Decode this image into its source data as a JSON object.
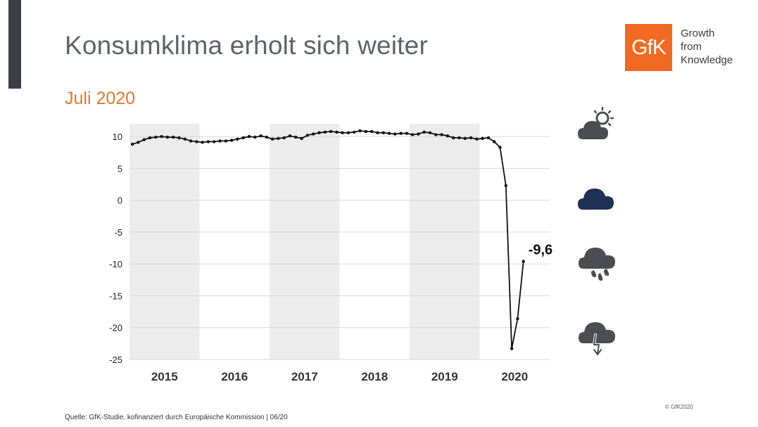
{
  "slide": {
    "title": "Konsumklima erholt sich weiter",
    "subtitle": "Juli 2020",
    "source": "Quelle: GfK-Studie, kofinanziert durch Europäische Kommission | 06/20",
    "copyright": "© GfK2020"
  },
  "logo": {
    "text": "GfK",
    "tagline": [
      "Growth",
      "from",
      "Knowledge"
    ],
    "color": "#f26a21"
  },
  "weather_icons": [
    "sun-behind-cloud-icon",
    "dark-cloud-icon",
    "rain-cloud-icon",
    "lightning-cloud-icon"
  ],
  "chart_data": {
    "type": "line",
    "title": "",
    "xlabel": "",
    "ylabel": "",
    "ylim": [
      -25,
      12
    ],
    "yticks": [
      10,
      5,
      0,
      -5,
      -10,
      -15,
      -20,
      -25
    ],
    "year_labels": [
      "2015",
      "2016",
      "2017",
      "2018",
      "2019",
      "2020"
    ],
    "shaded_years": [
      "2015",
      "2017",
      "2019"
    ],
    "grid": true,
    "line_color": "#111111",
    "annotation": {
      "label": "-9,6",
      "point": "last"
    },
    "series": [
      {
        "values": [
          8.8,
          9.1,
          9.5,
          9.8,
          9.9,
          10.0,
          9.9,
          9.9,
          9.8,
          9.6,
          9.3,
          9.2,
          9.1,
          9.2,
          9.2,
          9.3,
          9.3,
          9.4,
          9.6,
          9.8,
          10.0,
          9.9,
          10.1,
          9.9,
          9.6,
          9.7,
          9.8,
          10.1,
          9.9,
          9.7,
          10.2,
          10.4,
          10.6,
          10.7,
          10.8,
          10.7,
          10.6,
          10.6,
          10.7,
          10.9,
          10.8,
          10.8,
          10.6,
          10.6,
          10.5,
          10.4,
          10.5,
          10.5,
          10.3,
          10.4,
          10.7,
          10.6,
          10.3,
          10.3,
          10.1,
          9.8,
          9.8,
          9.7,
          9.8,
          9.6,
          9.7,
          9.8,
          9.2,
          8.3,
          2.3,
          -23.3,
          -18.6,
          -9.6
        ]
      }
    ]
  }
}
